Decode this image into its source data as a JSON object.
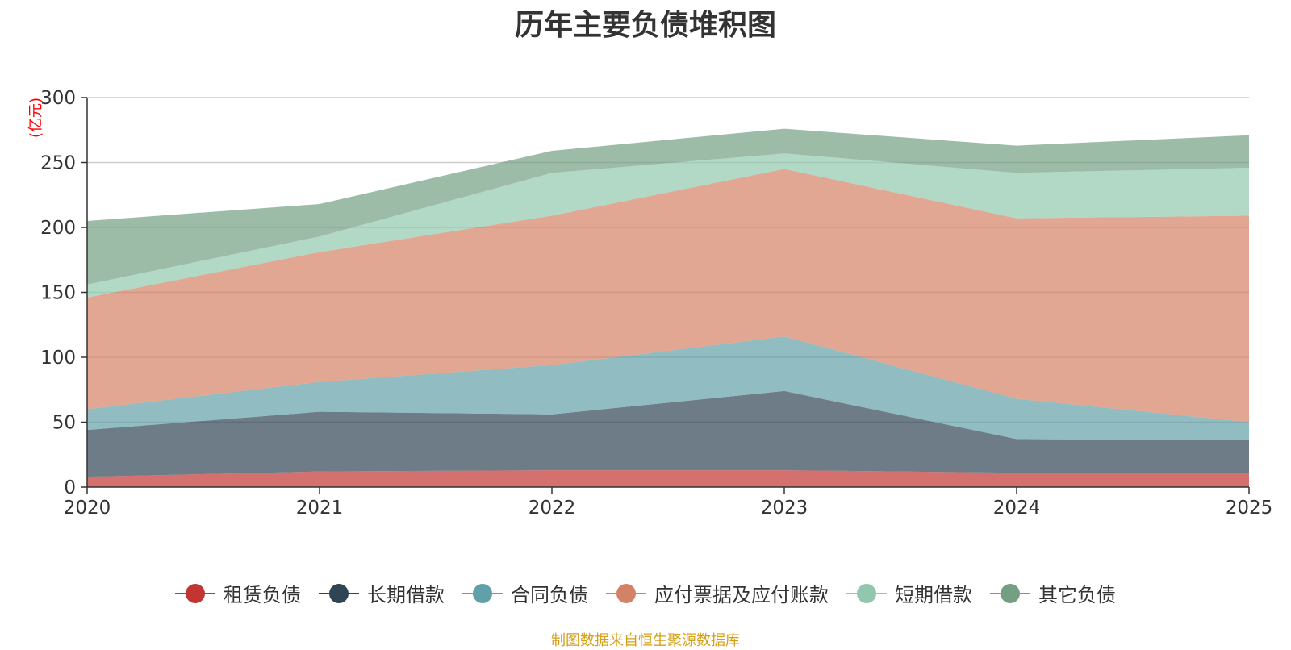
{
  "chart_data": {
    "type": "area",
    "stacked": true,
    "title": "历年主要负债堆积图",
    "unit_label": "(亿元)",
    "x": [
      "2020",
      "2021",
      "2022",
      "2023",
      "2024",
      "2025"
    ],
    "ylim": [
      0,
      300
    ],
    "yticks": [
      0,
      50,
      100,
      150,
      200,
      250,
      300
    ],
    "grid": true,
    "legend_position": "bottom",
    "series": [
      {
        "name": "租赁负债",
        "color": "#c23531",
        "values": [
          8,
          12,
          13,
          13,
          11,
          11
        ]
      },
      {
        "name": "长期借款",
        "color": "#2f4554",
        "values": [
          36,
          46,
          43,
          61,
          26,
          25
        ]
      },
      {
        "name": "合同负债",
        "color": "#61a0a8",
        "values": [
          16,
          23,
          38,
          42,
          31,
          14
        ]
      },
      {
        "name": "应付票据及应付账款",
        "color": "#d48265",
        "values": [
          86,
          100,
          115,
          129,
          139,
          159
        ]
      },
      {
        "name": "短期借款",
        "color": "#91c7ae",
        "values": [
          10,
          12,
          33,
          12,
          35,
          37
        ]
      },
      {
        "name": "其它负债",
        "color": "#749f83",
        "values": [
          49,
          25,
          17,
          19,
          21,
          25
        ]
      }
    ],
    "source_note": "制图数据来自恒生聚源数据库"
  }
}
